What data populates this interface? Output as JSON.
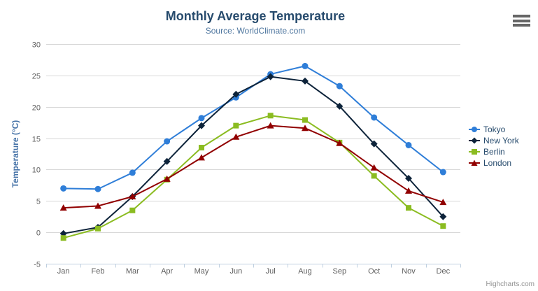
{
  "chart_data": {
    "type": "line",
    "title": "Monthly Average Temperature",
    "subtitle": "Source: WorldClimate.com",
    "xlabel": "",
    "ylabel": "Temperature (°C)",
    "categories": [
      "Jan",
      "Feb",
      "Mar",
      "Apr",
      "May",
      "Jun",
      "Jul",
      "Aug",
      "Sep",
      "Oct",
      "Nov",
      "Dec"
    ],
    "ylim": [
      -5,
      30
    ],
    "ytick_interval": 5,
    "grid": true,
    "legend_position": "right",
    "series": [
      {
        "name": "Tokyo",
        "marker": "circle",
        "color": "#2f7ed8",
        "values": [
          7.0,
          6.9,
          9.5,
          14.5,
          18.2,
          21.5,
          25.2,
          26.5,
          23.3,
          18.3,
          13.9,
          9.6
        ]
      },
      {
        "name": "New York",
        "marker": "diamond",
        "color": "#0d233a",
        "values": [
          -0.2,
          0.8,
          5.7,
          11.3,
          17.0,
          22.0,
          24.8,
          24.1,
          20.1,
          14.1,
          8.6,
          2.5
        ]
      },
      {
        "name": "Berlin",
        "marker": "square",
        "color": "#8bbc21",
        "values": [
          -0.9,
          0.6,
          3.5,
          8.4,
          13.5,
          17.0,
          18.6,
          17.9,
          14.3,
          9.0,
          3.9,
          1.0
        ]
      },
      {
        "name": "London",
        "marker": "triangle",
        "color": "#910000",
        "values": [
          3.9,
          4.2,
          5.7,
          8.5,
          11.9,
          15.2,
          17.0,
          16.6,
          14.2,
          10.3,
          6.6,
          4.8
        ]
      }
    ],
    "credits": "Highcharts.com",
    "colors": {
      "background": "#ffffff",
      "grid": "#d8d8d8",
      "axis_line": "#c0d0e0",
      "tick": "#c0d0e0",
      "axis_label": "#606060",
      "title": "#274b6d",
      "subtitle": "#4d759e",
      "yaxis_title": "#4572a7",
      "legend_text": "#274b6d",
      "credits": "#909090",
      "menu_icon": "#666666"
    }
  }
}
